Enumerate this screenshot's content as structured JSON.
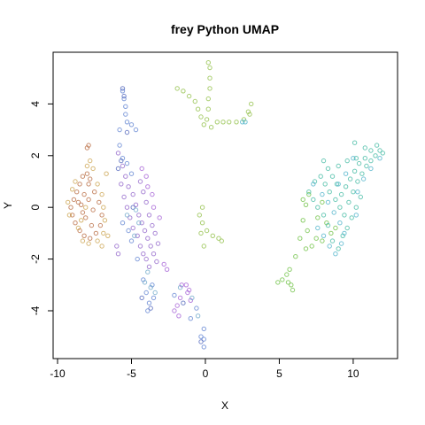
{
  "chart_data": {
    "type": "scatter",
    "title": "frey Python UMAP",
    "xlabel": "X",
    "ylabel": "Y",
    "xlim": [
      -10.3,
      13.0
    ],
    "ylim": [
      -5.85,
      6.0
    ],
    "xticks": [
      -10,
      -5,
      0,
      5,
      10
    ],
    "yticks": [
      -4,
      -2,
      0,
      2,
      4
    ],
    "grid": false,
    "legend": "none",
    "marker": "open-circle",
    "clusters": [
      {
        "color": "#b5653a",
        "points": [
          [
            -8.3,
            1.2
          ],
          [
            -8.0,
            1.3
          ],
          [
            -7.8,
            1.1
          ],
          [
            -8.5,
            0.9
          ],
          [
            -8.7,
            0.6
          ],
          [
            -8.9,
            0.3
          ],
          [
            -9.1,
            0.0
          ],
          [
            -9.0,
            -0.3
          ],
          [
            -8.8,
            -0.6
          ],
          [
            -8.5,
            -0.9
          ],
          [
            -8.2,
            -1.1
          ],
          [
            -7.8,
            -1.2
          ],
          [
            -7.4,
            -1.0
          ],
          [
            -7.1,
            -0.7
          ],
          [
            -7.0,
            -0.3
          ],
          [
            -7.2,
            0.2
          ],
          [
            -7.5,
            0.6
          ],
          [
            -7.9,
            0.9
          ],
          [
            -8.2,
            0.5
          ],
          [
            -8.4,
            0.1
          ],
          [
            -8.1,
            -0.4
          ],
          [
            -7.7,
            -0.7
          ],
          [
            -7.6,
            -0.1
          ],
          [
            -7.9,
            0.3
          ],
          [
            -8.0,
            2.3
          ],
          [
            -7.9,
            2.4
          ],
          [
            -8.6,
            0.2
          ],
          [
            -8.3,
            -0.2
          ]
        ]
      },
      {
        "color": "#c9a04a",
        "points": [
          [
            -9.3,
            0.2
          ],
          [
            -9.2,
            -0.3
          ],
          [
            -9.0,
            0.7
          ],
          [
            -8.8,
            1.0
          ],
          [
            -8.6,
            -0.8
          ],
          [
            -8.3,
            -1.3
          ],
          [
            -7.9,
            -1.4
          ],
          [
            -7.3,
            -1.3
          ],
          [
            -6.9,
            -1.0
          ],
          [
            -6.8,
            -0.5
          ],
          [
            -6.9,
            0.0
          ],
          [
            -7.0,
            0.5
          ],
          [
            -7.3,
            0.9
          ],
          [
            -7.6,
            1.5
          ],
          [
            -7.8,
            1.8
          ],
          [
            -8.0,
            1.6
          ],
          [
            -6.6,
            -1.1
          ],
          [
            -7.0,
            -1.5
          ],
          [
            -6.7,
            1.3
          ],
          [
            -8.4,
            -0.5
          ],
          [
            -8.1,
            0.0
          ]
        ]
      },
      {
        "color": "#8e5fc8",
        "points": [
          [
            -5.9,
            2.1
          ],
          [
            -5.6,
            1.6
          ],
          [
            -5.4,
            1.2
          ],
          [
            -5.2,
            0.8
          ],
          [
            -4.9,
            0.5
          ],
          [
            -4.7,
            0.1
          ],
          [
            -4.5,
            -0.3
          ],
          [
            -4.3,
            -0.6
          ],
          [
            -4.1,
            -0.9
          ],
          [
            -3.9,
            -1.2
          ],
          [
            -3.7,
            -1.5
          ],
          [
            -3.5,
            -1.8
          ],
          [
            -3.3,
            -2.1
          ],
          [
            -5.7,
            0.9
          ],
          [
            -5.5,
            0.4
          ],
          [
            -5.3,
            0.0
          ],
          [
            -5.1,
            -0.4
          ],
          [
            -4.9,
            -0.8
          ],
          [
            -4.6,
            -1.1
          ],
          [
            -4.4,
            -1.5
          ],
          [
            -4.2,
            -1.8
          ],
          [
            -4.0,
            -2.0
          ],
          [
            -3.8,
            -2.3
          ],
          [
            -4.4,
            1.0
          ],
          [
            -4.2,
            0.6
          ],
          [
            -4.0,
            0.2
          ],
          [
            -3.8,
            -0.3
          ],
          [
            -3.6,
            -0.7
          ],
          [
            -3.4,
            -1.0
          ],
          [
            -3.2,
            -1.4
          ],
          [
            -6.0,
            -1.5
          ],
          [
            -5.9,
            -1.8
          ]
        ]
      },
      {
        "color": "#a15bd4",
        "points": [
          [
            -2.8,
            -2.2
          ],
          [
            -2.6,
            -2.4
          ],
          [
            -4.3,
            1.5
          ],
          [
            -4.0,
            1.2
          ],
          [
            -3.9,
            0.8
          ],
          [
            -3.6,
            0.5
          ],
          [
            -3.5,
            0.0
          ],
          [
            -3.1,
            -0.4
          ],
          [
            -1.6,
            -3.0
          ],
          [
            -1.3,
            -3.0
          ],
          [
            -1.1,
            -3.2
          ],
          [
            -1.0,
            -3.6
          ],
          [
            -1.2,
            -3.3
          ],
          [
            -1.7,
            -3.5
          ],
          [
            -1.9,
            -3.8
          ],
          [
            -2.1,
            -4.0
          ],
          [
            -1.8,
            -4.2
          ]
        ]
      },
      {
        "color": "#5b7fd0",
        "points": [
          [
            -5.6,
            4.5
          ],
          [
            -5.5,
            4.2
          ],
          [
            -5.4,
            3.9
          ],
          [
            -5.4,
            3.6
          ],
          [
            -5.3,
            3.3
          ],
          [
            -5.8,
            3.0
          ],
          [
            -5.0,
            3.2
          ],
          [
            -4.7,
            3.0
          ],
          [
            -5.8,
            2.4
          ],
          [
            -5.6,
            1.9
          ],
          [
            -5.3,
            1.7
          ],
          [
            -5.0,
            1.3
          ],
          [
            -5.6,
            -0.6
          ],
          [
            -5.2,
            -0.9
          ],
          [
            -5.0,
            -1.3
          ],
          [
            -4.6,
            -2.0
          ],
          [
            -4.2,
            -2.8
          ],
          [
            -4.0,
            -3.3
          ],
          [
            -3.8,
            -3.7
          ],
          [
            -3.9,
            -4.0
          ],
          [
            -3.5,
            -3.5
          ],
          [
            -3.6,
            -3.0
          ],
          [
            -2.1,
            -3.4
          ],
          [
            -0.6,
            -3.9
          ],
          [
            -1.0,
            -4.3
          ],
          [
            -0.1,
            -4.7
          ],
          [
            -0.1,
            -5.1
          ],
          [
            -0.1,
            -5.4
          ],
          [
            -0.3,
            -5.0
          ]
        ]
      },
      {
        "color": "#4a5fb8",
        "points": [
          [
            -5.6,
            4.6
          ],
          [
            -5.5,
            4.3
          ],
          [
            -5.3,
            2.9
          ],
          [
            -5.7,
            1.8
          ],
          [
            -5.9,
            1.5
          ],
          [
            -4.9,
            0.0
          ],
          [
            -4.3,
            -3.5
          ],
          [
            -3.7,
            -3.9
          ],
          [
            -1.5,
            -3.7
          ],
          [
            -0.3,
            -5.2
          ]
        ]
      },
      {
        "color": "#6aa5c8",
        "points": [
          [
            -4.7,
            -0.1
          ],
          [
            -4.5,
            -0.6
          ],
          [
            -4.8,
            -1.1
          ],
          [
            -3.9,
            -2.5
          ],
          [
            -4.1,
            -2.9
          ],
          [
            -3.7,
            -3.1
          ],
          [
            -3.4,
            -3.3
          ],
          [
            -1.7,
            -3.1
          ],
          [
            -0.9,
            -3.5
          ],
          [
            -0.5,
            -4.2
          ],
          [
            -5.3,
            -0.3
          ]
        ]
      },
      {
        "color": "#8ebd42",
        "points": [
          [
            -1.9,
            4.6
          ],
          [
            -1.5,
            4.5
          ],
          [
            -1.1,
            4.3
          ],
          [
            -0.7,
            4.1
          ],
          [
            -0.5,
            3.8
          ],
          [
            -0.3,
            3.5
          ],
          [
            -0.1,
            3.2
          ],
          [
            0.1,
            3.4
          ],
          [
            0.2,
            3.8
          ],
          [
            0.2,
            4.2
          ],
          [
            0.3,
            4.6
          ],
          [
            0.3,
            5.0
          ],
          [
            0.3,
            5.4
          ],
          [
            0.2,
            5.6
          ],
          [
            0.4,
            3.1
          ],
          [
            0.8,
            3.3
          ],
          [
            1.2,
            3.3
          ],
          [
            1.6,
            3.3
          ],
          [
            2.1,
            3.3
          ],
          [
            2.6,
            3.4
          ],
          [
            2.9,
            3.7
          ],
          [
            3.1,
            4.0
          ],
          [
            3.0,
            3.6
          ],
          [
            -0.4,
            -0.3
          ],
          [
            -0.2,
            -0.6
          ],
          [
            0.1,
            -0.9
          ],
          [
            0.5,
            -1.1
          ],
          [
            0.9,
            -1.2
          ],
          [
            1.1,
            -1.3
          ],
          [
            -0.2,
            0.0
          ],
          [
            -0.3,
            -1.0
          ],
          [
            -0.1,
            -1.5
          ]
        ]
      },
      {
        "color": "#6abf3e",
        "points": [
          [
            4.9,
            -2.9
          ],
          [
            5.2,
            -2.8
          ],
          [
            5.5,
            -2.6
          ],
          [
            5.6,
            -2.9
          ],
          [
            5.8,
            -3.0
          ],
          [
            5.9,
            -3.2
          ],
          [
            5.7,
            -2.4
          ],
          [
            6.1,
            -1.9
          ],
          [
            6.4,
            -1.2
          ],
          [
            6.6,
            -0.5
          ],
          [
            6.8,
            0.1
          ],
          [
            7.0,
            0.5
          ],
          [
            6.6,
            0.3
          ],
          [
            6.9,
            -0.9
          ],
          [
            7.2,
            -1.5
          ],
          [
            7.6,
            -0.4
          ],
          [
            7.9,
            0.2
          ],
          [
            8.2,
            -0.6
          ],
          [
            8.5,
            -1.0
          ],
          [
            8.8,
            -0.8
          ],
          [
            7.5,
            -1.2
          ],
          [
            6.8,
            -1.6
          ],
          [
            7.9,
            -1.3
          ]
        ]
      },
      {
        "color": "#3eb8a0",
        "points": [
          [
            7.4,
            1.0
          ],
          [
            7.8,
            1.2
          ],
          [
            8.1,
            0.9
          ],
          [
            8.4,
            0.6
          ],
          [
            8.8,
            0.3
          ],
          [
            9.1,
            0.0
          ],
          [
            9.4,
            -0.3
          ],
          [
            9.7,
            0.2
          ],
          [
            10.0,
            0.6
          ],
          [
            10.3,
            1.0
          ],
          [
            10.6,
            1.3
          ],
          [
            10.9,
            1.6
          ],
          [
            11.2,
            1.8
          ],
          [
            11.5,
            2.0
          ],
          [
            11.8,
            2.2
          ],
          [
            12.0,
            2.1
          ],
          [
            11.6,
            2.4
          ],
          [
            11.2,
            2.2
          ],
          [
            10.8,
            1.9
          ],
          [
            10.4,
            1.7
          ],
          [
            10.1,
            1.4
          ],
          [
            9.8,
            1.1
          ],
          [
            9.5,
            0.8
          ],
          [
            9.2,
            0.5
          ],
          [
            8.9,
            0.9
          ],
          [
            8.6,
            1.2
          ],
          [
            8.3,
            1.5
          ],
          [
            8.0,
            1.8
          ],
          [
            9.0,
            1.6
          ],
          [
            9.6,
            1.8
          ],
          [
            10.2,
            1.9
          ],
          [
            10.8,
            2.3
          ],
          [
            10.5,
            0.4
          ],
          [
            10.2,
            0.0
          ],
          [
            9.9,
            -0.4
          ],
          [
            9.6,
            -0.8
          ],
          [
            9.3,
            -1.1
          ],
          [
            7.0,
            0.6
          ],
          [
            7.3,
            0.3
          ],
          [
            7.6,
            0.0
          ],
          [
            8.0,
            -0.3
          ],
          [
            8.3,
            -0.7
          ],
          [
            8.6,
            -1.3
          ],
          [
            9.0,
            -1.6
          ],
          [
            10.1,
            2.5
          ]
        ]
      },
      {
        "color": "#48b0c8",
        "points": [
          [
            7.9,
            0.5
          ],
          [
            8.3,
            0.2
          ],
          [
            8.7,
            -0.2
          ],
          [
            9.1,
            -0.6
          ],
          [
            9.4,
            -1.0
          ],
          [
            7.6,
            -0.8
          ],
          [
            8.0,
            -1.1
          ],
          [
            8.4,
            -1.5
          ],
          [
            8.8,
            -1.8
          ],
          [
            9.0,
            0.9
          ],
          [
            9.5,
            1.3
          ],
          [
            10.3,
            0.6
          ],
          [
            10.7,
            1.1
          ],
          [
            10.0,
            1.9
          ],
          [
            11.2,
            1.5
          ],
          [
            11.8,
            1.9
          ],
          [
            10.2,
            -0.3
          ],
          [
            9.2,
            -1.4
          ],
          [
            7.3,
            0.9
          ],
          [
            2.5,
            3.3
          ],
          [
            2.7,
            3.3
          ]
        ]
      }
    ]
  }
}
